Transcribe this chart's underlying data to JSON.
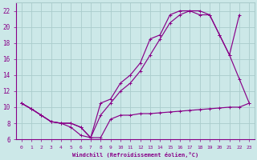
{
  "xlabel": "Windchill (Refroidissement éolien,°C)",
  "bg_color": "#cce8e8",
  "grid_color": "#aacccc",
  "line_color": "#880088",
  "xlim": [
    -0.5,
    23.5
  ],
  "ylim": [
    6,
    23
  ],
  "yticks": [
    6,
    8,
    10,
    12,
    14,
    16,
    18,
    20,
    22
  ],
  "xticks": [
    0,
    1,
    2,
    3,
    4,
    5,
    6,
    7,
    8,
    9,
    10,
    11,
    12,
    13,
    14,
    15,
    16,
    17,
    18,
    19,
    20,
    21,
    22,
    23
  ],
  "line1_x": [
    0,
    1,
    2,
    3,
    4,
    5,
    6,
    7,
    8,
    9,
    10,
    11,
    12,
    13,
    14,
    15,
    16,
    17,
    18,
    19,
    20,
    21,
    22,
    23
  ],
  "line1_y": [
    10.5,
    9.8,
    9.0,
    8.2,
    8.0,
    8.0,
    7.5,
    6.2,
    6.2,
    8.5,
    9.0,
    9.0,
    9.2,
    9.2,
    9.3,
    9.4,
    9.5,
    9.6,
    9.7,
    9.8,
    9.9,
    10.0,
    10.0,
    10.5
  ],
  "line2_x": [
    0,
    1,
    2,
    3,
    4,
    5,
    6,
    7,
    8,
    9,
    10,
    11,
    12,
    13,
    14,
    15,
    16,
    17,
    18,
    19,
    20,
    21,
    22,
    23
  ],
  "line2_y": [
    10.5,
    9.8,
    9.0,
    8.2,
    8.0,
    8.0,
    7.5,
    6.2,
    10.5,
    11.0,
    13.0,
    14.0,
    15.5,
    18.5,
    19.0,
    21.5,
    22.0,
    22.0,
    22.0,
    21.5,
    19.0,
    16.5,
    13.5,
    10.5
  ],
  "line3_x": [
    0,
    1,
    2,
    3,
    4,
    5,
    6,
    7,
    8,
    9,
    10,
    11,
    12,
    13,
    14,
    15,
    16,
    17,
    18,
    19,
    20,
    21,
    22
  ],
  "line3_y": [
    10.5,
    9.8,
    9.0,
    8.2,
    8.0,
    7.5,
    6.5,
    6.2,
    9.0,
    10.5,
    12.0,
    13.0,
    14.5,
    16.5,
    18.5,
    20.5,
    21.5,
    22.0,
    21.5,
    21.5,
    19.0,
    16.5,
    21.5
  ]
}
